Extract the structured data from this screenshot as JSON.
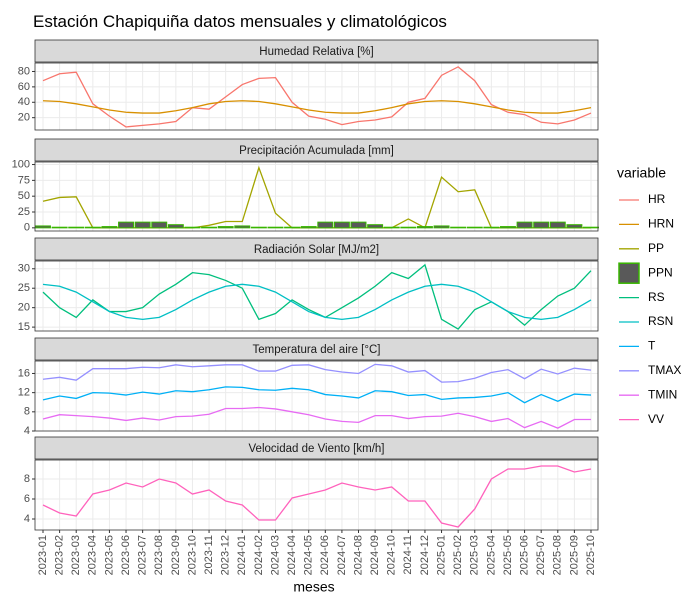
{
  "chart_data": {
    "type": "line",
    "title": "Estación Chapiquiña datos mensuales y climatológicos",
    "x_label": "meses",
    "legend_title": "variable",
    "grid": true,
    "categories": [
      "2023-01",
      "2023-02",
      "2023-03",
      "2023-04",
      "2023-05",
      "2023-06",
      "2023-07",
      "2023-08",
      "2023-09",
      "2023-10",
      "2023-11",
      "2023-12",
      "2024-01",
      "2024-02",
      "2024-03",
      "2024-04",
      "2024-05",
      "2024-06",
      "2024-07",
      "2024-08",
      "2024-09",
      "2024-10",
      "2024-11",
      "2024-12",
      "2025-01",
      "2025-02",
      "2025-03",
      "2025-04",
      "2025-05",
      "2025-06",
      "2025-07",
      "2025-08",
      "2025-09",
      "2025-10"
    ],
    "facets": [
      {
        "title": "Humedad Relativa [%]",
        "ylim": [
          4,
          91
        ],
        "yticks": [
          20,
          40,
          60,
          80
        ],
        "series": [
          {
            "name": "HR",
            "color": "#F8766D",
            "values": [
              68,
              77,
              79,
              38,
              22,
              8,
              10,
              12,
              15,
              33,
              31,
              47,
              63,
              71,
              72,
              40,
              22,
              18,
              11,
              15,
              17,
              21,
              40,
              45,
              75,
              86,
              68,
              37,
              27,
              24,
              14,
              12,
              17,
              26
            ]
          },
          {
            "name": "HRN",
            "color": "#D89000",
            "values": [
              42,
              41,
              38,
              34,
              30,
              27,
              26,
              26,
              29,
              33,
              38,
              41,
              42,
              41,
              38,
              34,
              30,
              27,
              26,
              26,
              29,
              33,
              38,
              41,
              42,
              41,
              38,
              34,
              30,
              27,
              26,
              26,
              29,
              33
            ]
          }
        ]
      },
      {
        "title": "Precipitación Acumulada [mm]",
        "ylim": [
          -5,
          104
        ],
        "yticks": [
          0,
          25,
          50,
          75,
          100
        ],
        "series": [
          {
            "name": "PP",
            "color": "#A3A500",
            "values": [
              42,
              48,
              49,
              0,
              0,
              0,
              0,
              0,
              0,
              0,
              4,
              10,
              10,
              95,
              23,
              0,
              0,
              0,
              0,
              0,
              0,
              0,
              14,
              0,
              80,
              57,
              60,
              0,
              0,
              0,
              0,
              0,
              0,
              0
            ]
          },
          {
            "name": "PPN",
            "type": "bar",
            "color": "#39B600",
            "fill": "#595959",
            "values": [
              3,
              1,
              1,
              1,
              2,
              9,
              9,
              9,
              5,
              1,
              1,
              2,
              3,
              1,
              1,
              1,
              2,
              9,
              9,
              9,
              5,
              1,
              1,
              2,
              3,
              1,
              1,
              1,
              2,
              9,
              9,
              9,
              5,
              1
            ]
          }
        ]
      },
      {
        "title": "Radiación Solar [MJ/m2]",
        "ylim": [
          14,
          32
        ],
        "yticks": [
          15,
          20,
          25,
          30
        ],
        "series": [
          {
            "name": "RS",
            "color": "#00BF7D",
            "values": [
              24,
              20,
              17.5,
              22,
              19,
              19,
              20,
              23.5,
              26,
              29,
              28.5,
              27,
              25,
              17,
              18.5,
              22,
              19.5,
              17.5,
              20,
              22.5,
              25.5,
              29,
              27.5,
              31,
              17,
              14.5,
              19.5,
              21.5,
              19,
              15.5,
              19.5,
              23,
              25,
              29.5
            ]
          },
          {
            "name": "RSN",
            "color": "#00BFC4",
            "values": [
              26,
              25.5,
              24,
              21.5,
              19,
              17.5,
              17,
              17.5,
              19.5,
              22,
              24,
              25.5,
              26,
              25.5,
              24,
              21.5,
              19,
              17.5,
              17,
              17.5,
              19.5,
              22,
              24,
              25.5,
              26,
              25.5,
              24,
              21.5,
              19,
              17.5,
              17,
              17.5,
              19.5,
              22
            ]
          }
        ]
      },
      {
        "title": "Temperatura del aire [°C]",
        "ylim": [
          4,
          18.6
        ],
        "yticks": [
          4,
          8,
          12,
          16
        ],
        "series": [
          {
            "name": "T",
            "color": "#00B0F6",
            "values": [
              10.5,
              11.3,
              10.8,
              12,
              11.9,
              11.5,
              12.1,
              11.7,
              12.4,
              12.2,
              12.6,
              13.2,
              13.1,
              12.6,
              12.5,
              12.9,
              12.6,
              11.6,
              11.3,
              10.9,
              12.4,
              12.2,
              11.4,
              11.6,
              10.6,
              10.9,
              11,
              11.3,
              12,
              9.9,
              11.6,
              10.2,
              11.7,
              11.5
            ]
          },
          {
            "name": "TMAX",
            "color": "#9590FF",
            "values": [
              14.8,
              15.2,
              14.6,
              17,
              17,
              17,
              17.3,
              17.2,
              17.8,
              17.4,
              17.6,
              17.8,
              17.8,
              16.5,
              16.5,
              17.7,
              17.8,
              16.8,
              16.3,
              16,
              17.9,
              17.6,
              16.3,
              16.6,
              14.2,
              14.3,
              15,
              16.2,
              16.8,
              14.9,
              16.9,
              15.9,
              17.1,
              16.7
            ]
          },
          {
            "name": "TMIN",
            "color": "#E76BF3",
            "values": [
              6.5,
              7.4,
              7.2,
              7,
              6.7,
              6.2,
              6.7,
              6.3,
              7,
              7.1,
              7.5,
              8.7,
              8.7,
              8.9,
              8.6,
              8,
              7.4,
              6.5,
              6,
              5.8,
              7.2,
              7.2,
              6.6,
              7,
              7.1,
              7.7,
              7,
              6,
              6.6,
              4.7,
              6,
              4.6,
              6.4,
              6.4
            ]
          }
        ]
      },
      {
        "title": "Velocidad de Viento [km/h]",
        "ylim": [
          2.9,
          9.9
        ],
        "yticks": [
          4,
          6,
          8
        ],
        "series": [
          {
            "name": "VV",
            "color": "#FF62BC",
            "values": [
              5.4,
              4.6,
              4.3,
              6.5,
              6.9,
              7.6,
              7.2,
              8,
              7.6,
              6.5,
              6.9,
              5.8,
              5.4,
              3.9,
              3.9,
              6.1,
              6.5,
              6.9,
              7.6,
              7.2,
              6.9,
              7.2,
              5.8,
              5.8,
              3.6,
              3.2,
              5,
              8,
              9,
              9,
              9.3,
              9.3,
              8.7,
              9
            ]
          }
        ]
      }
    ]
  }
}
